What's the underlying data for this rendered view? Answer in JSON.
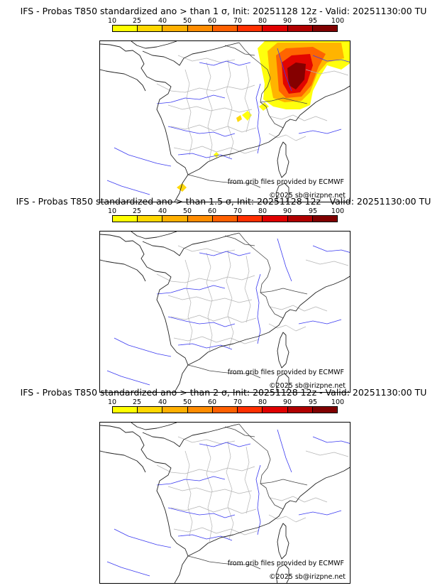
{
  "colorbar": {
    "labels": [
      "10",
      "25",
      "40",
      "50",
      "60",
      "70",
      "80",
      "90",
      "95",
      "100"
    ],
    "colors": [
      "#ffff00",
      "#ffd700",
      "#ffb000",
      "#ff8c00",
      "#ff6000",
      "#ff3000",
      "#e00000",
      "#b00000",
      "#800000"
    ]
  },
  "panels": [
    {
      "title": "IFS - Probas T850  standardized ano > than 1 σ, Init: 20251128 12z - Valid: 20251130:00 TU",
      "credit_source": "from grib files provided by ECMWF",
      "credit_copyright": "©2025 sb@irizpne.net",
      "has_anomaly": true
    },
    {
      "title": "IFS - Probas T850  standardized ano > than 1.5 σ, Init: 20251128 12z - Valid: 20251130:00 TU",
      "credit_source": "from grib files provided by ECMWF",
      "credit_copyright": "©2025 sb@irizpne.net",
      "has_anomaly": false
    },
    {
      "title": "IFS - Probas T850  standardized ano > than 2 σ, Init: 20251128 12z - Valid: 20251130:00 TU",
      "credit_source": "from grib files provided by ECMWF",
      "credit_copyright": "©2025 sb@irizpne.net",
      "has_anomaly": false
    }
  ]
}
